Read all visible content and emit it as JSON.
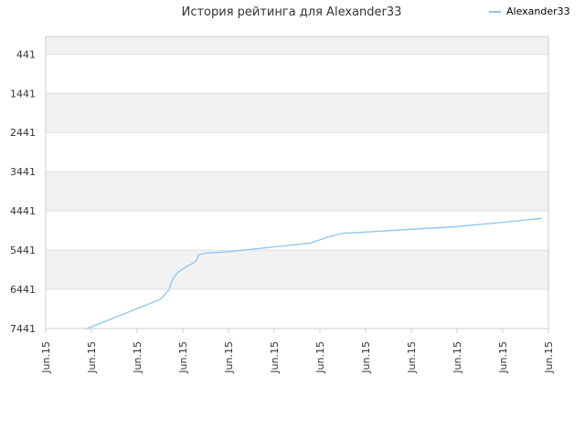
{
  "chart_data": {
    "type": "line",
    "title": "История рейтинга для Alexander33",
    "xlabel": "",
    "ylabel": "",
    "y_inverted": true,
    "ylim": [
      7441,
      -9
    ],
    "yticks": [
      441,
      1441,
      2441,
      3441,
      4441,
      5441,
      6441,
      7441
    ],
    "xtick_labels": [
      "Jun.15",
      "Jun.15",
      "Jun.15",
      "Jun.15",
      "Jun.15",
      "Jun.15",
      "Jun.15",
      "Jun.15",
      "Jun.15",
      "Jun.15",
      "Jun.15",
      "Jun.15"
    ],
    "grid": true,
    "legend_position": "top-right",
    "colors": {
      "line": "#8ec4ee",
      "band": "#f2f2f2",
      "grid": "#e0e0e0",
      "axis": "#cccccc"
    },
    "series": [
      {
        "name": "Alexander33",
        "x": [
          0.9,
          1.0,
          2.5,
          2.55,
          2.7,
          2.75,
          2.8,
          2.9,
          3.1,
          3.2,
          3.3,
          3.35,
          3.5,
          4.0,
          4.5,
          5.0,
          5.5,
          5.8,
          6.2,
          6.5,
          7.0,
          8.0,
          9.0,
          10.0,
          10.85
        ],
        "y": [
          7441,
          7400,
          6700,
          6650,
          6450,
          6250,
          6150,
          6000,
          5850,
          5790,
          5700,
          5560,
          5520,
          5480,
          5420,
          5360,
          5300,
          5260,
          5100,
          5010,
          4980,
          4910,
          4840,
          4730,
          4630
        ]
      }
    ]
  }
}
